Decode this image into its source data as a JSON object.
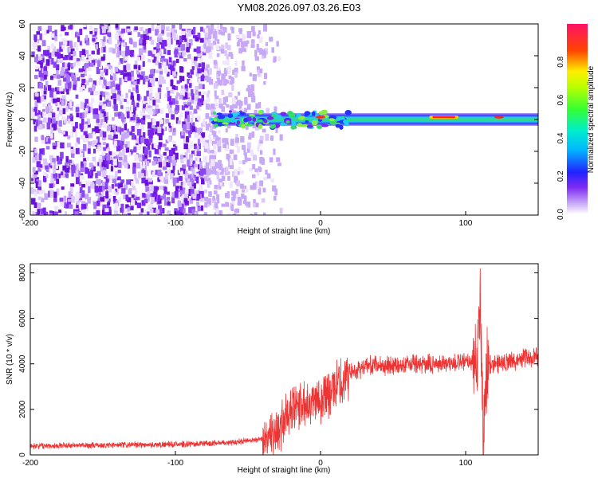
{
  "title": "YM08.2026.097.03.26.E03",
  "colors": {
    "snr_line": "#ee3333",
    "spectro_low": "#7a2cf0",
    "spectro_faint": "#e4d4fb",
    "band_core": "#ff2222",
    "band_mid": "#33dd77",
    "band_edge": "#4444ff"
  },
  "chart_data": [
    {
      "type": "heatmap",
      "xlabel": "Height of straight line (km)",
      "ylabel": "Frequency (Hz)",
      "xlim": [
        -200,
        150
      ],
      "ylim": [
        -60,
        60
      ],
      "xticks": [
        "-200",
        "-100",
        "0",
        "100"
      ],
      "yticks": [
        "-60",
        "-40",
        "-20",
        "0",
        "20",
        "40",
        "60"
      ],
      "grid": false,
      "noise_region_x": [
        -200,
        -35
      ],
      "band": {
        "x_range": [
          -70,
          150
        ],
        "center_freq": 0,
        "half_width_hz": 4,
        "hot_spots_x": [
          0,
          80,
          90,
          123
        ]
      },
      "colorbar": {
        "label": "Normalized spectral amplitude",
        "ticks": [
          "0.0",
          "0.2",
          "0.4",
          "0.6",
          "0.8"
        ],
        "range": [
          0,
          1
        ]
      }
    },
    {
      "type": "line",
      "xlabel": "Height of straight line (km)",
      "ylabel": "SNR (10 * v/v)",
      "xlim": [
        -200,
        150
      ],
      "ylim": [
        0,
        8400
      ],
      "xticks": [
        "-200",
        "-100",
        "0",
        "100"
      ],
      "yticks": [
        "0",
        "2000",
        "4000",
        "6000",
        "8000"
      ],
      "grid": false,
      "series": [
        {
          "x": [
            -200,
            -150,
            -100,
            -80,
            -60,
            -40,
            -30,
            -20,
            -10,
            0,
            10,
            20,
            30,
            50,
            80,
            100,
            108,
            110,
            112,
            115,
            130,
            150
          ],
          "y": [
            400,
            420,
            460,
            500,
            560,
            700,
            1100,
            1900,
            2400,
            2500,
            2900,
            3600,
            3900,
            3950,
            4000,
            4050,
            4200,
            7000,
            800,
            4000,
            4100,
            4350
          ]
        }
      ]
    }
  ]
}
